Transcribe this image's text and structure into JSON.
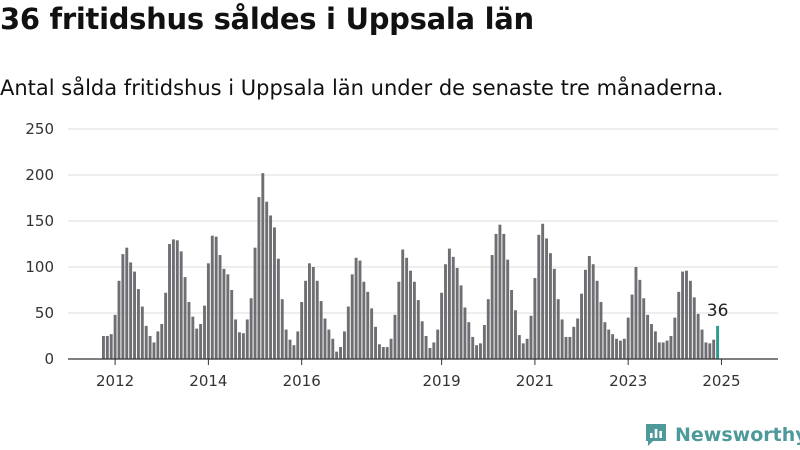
{
  "header": {
    "title": "36 fritidshus såldes i Uppsala län",
    "subtitle": "Antal sålda fritidshus i Uppsala län under de senaste tre månaderna."
  },
  "brand": {
    "name": "Newsworthy"
  },
  "colors": {
    "bar": "#6e6e73",
    "highlight": "#2a9d8f",
    "grid": "#dddddd",
    "axis": "#333333",
    "brand": "#4e9a9a"
  },
  "chart_data": {
    "type": "bar",
    "x_start": "2011-10",
    "x_end": "2025-04",
    "ylim": [
      0,
      250
    ],
    "y_ticks": [
      0,
      50,
      100,
      150,
      200,
      250
    ],
    "x_ticks": [
      "2012",
      "2014",
      "2016",
      "2019",
      "2021",
      "2023",
      "2025"
    ],
    "grid": true,
    "values": [
      25,
      25,
      27,
      48,
      85,
      114,
      121,
      105,
      95,
      76,
      57,
      36,
      25,
      18,
      30,
      38,
      72,
      125,
      130,
      129,
      117,
      89,
      62,
      46,
      33,
      38,
      58,
      104,
      134,
      133,
      113,
      98,
      92,
      75,
      43,
      29,
      28,
      43,
      66,
      121,
      176,
      202,
      171,
      156,
      143,
      109,
      65,
      32,
      21,
      15,
      30,
      62,
      85,
      104,
      100,
      85,
      63,
      44,
      32,
      22,
      8,
      13,
      30,
      57,
      92,
      110,
      107,
      84,
      73,
      55,
      35,
      16,
      13,
      13,
      22,
      48,
      84,
      119,
      110,
      96,
      84,
      64,
      41,
      25,
      12,
      18,
      32,
      72,
      103,
      120,
      111,
      99,
      80,
      56,
      40,
      24,
      15,
      17,
      37,
      65,
      113,
      136,
      146,
      136,
      108,
      75,
      53,
      26,
      17,
      22,
      47,
      88,
      135,
      147,
      131,
      115,
      98,
      65,
      43,
      24,
      24,
      35,
      44,
      71,
      97,
      112,
      103,
      85,
      62,
      40,
      32,
      27,
      22,
      20,
      22,
      45,
      70,
      100,
      86,
      66,
      48,
      38,
      30,
      18,
      18,
      20,
      25,
      45,
      73,
      95,
      96,
      85,
      67,
      49,
      32,
      18,
      17,
      21,
      36
    ],
    "highlight_label": "36"
  }
}
